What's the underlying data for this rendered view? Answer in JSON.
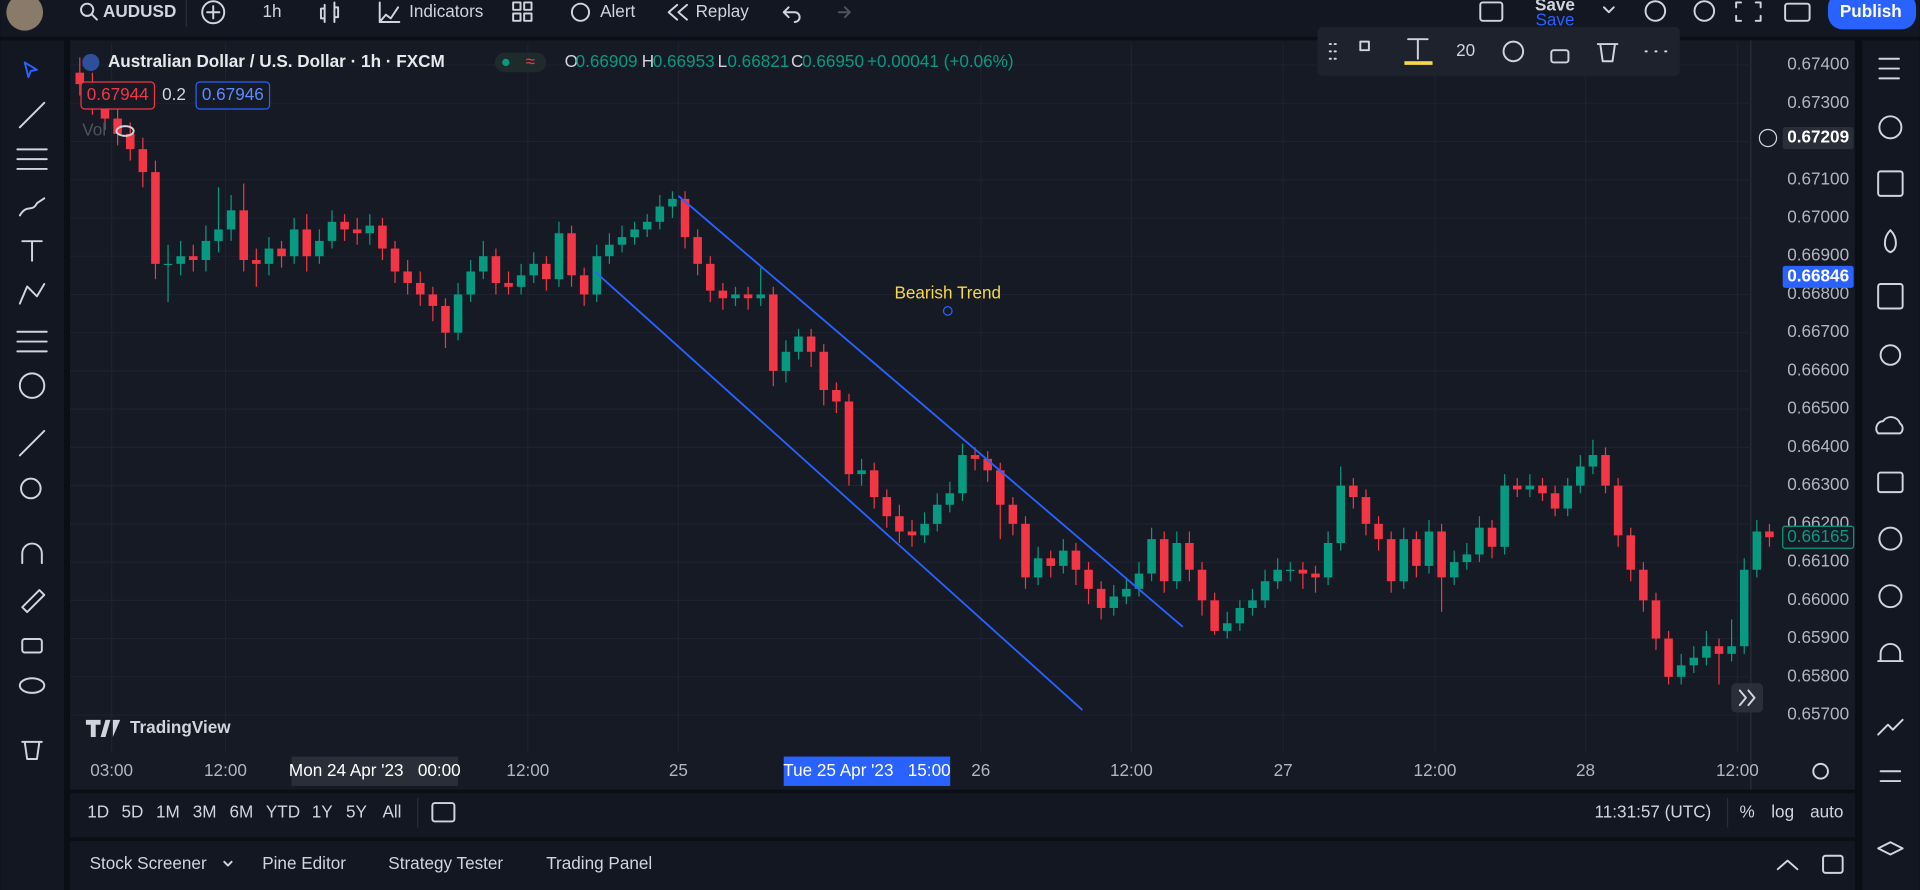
{
  "top_bar": {
    "symbol": "AUDUSD",
    "interval": "1h",
    "indicators": "Indicators",
    "alert": "Alert",
    "replay": "Replay",
    "save": "Save",
    "save_sub": "Save",
    "publish": "Publish"
  },
  "legend": {
    "title": "Australian Dollar / U.S. Dollar · 1h · FXCM",
    "o_label": "O",
    "o": "0.66909",
    "h_label": "H",
    "h": "0.66953",
    "l_label": "L",
    "l": "0.66821",
    "c_label": "C",
    "c": "0.66950",
    "change": "+0.00041 (+0.06%)",
    "sell": "0.67944",
    "spread": "0.2",
    "buy": "0.67946",
    "vol": "Vol"
  },
  "drawing_toolbar": {
    "font_size": "20"
  },
  "chart_data": {
    "type": "candlestick",
    "up_color": "#089981",
    "down_color": "#f23645",
    "grid": true,
    "ylim": [
      0.65601,
      0.67458
    ],
    "yticks": [
      {
        "value": 0.674,
        "label": "0.67400"
      },
      {
        "value": 0.673,
        "label": "0.67300"
      },
      {
        "value": 0.672,
        "label": "0.67200"
      },
      {
        "value": 0.671,
        "label": "0.67100"
      },
      {
        "value": 0.67,
        "label": "0.67000"
      },
      {
        "value": 0.669,
        "label": "0.66900"
      },
      {
        "value": 0.668,
        "label": "0.66800"
      },
      {
        "value": 0.667,
        "label": "0.66700"
      },
      {
        "value": 0.666,
        "label": "0.66600"
      },
      {
        "value": 0.665,
        "label": "0.66500"
      },
      {
        "value": 0.664,
        "label": "0.66400"
      },
      {
        "value": 0.663,
        "label": "0.66300"
      },
      {
        "value": 0.662,
        "label": "0.66200"
      },
      {
        "value": 0.661,
        "label": "0.66100"
      },
      {
        "value": 0.66,
        "label": "0.66000"
      },
      {
        "value": 0.659,
        "label": "0.65900"
      },
      {
        "value": 0.658,
        "label": "0.65800"
      },
      {
        "value": 0.657,
        "label": "0.65700"
      }
    ],
    "price_labels": [
      {
        "value": 0.67209,
        "label": "0.67209"
      },
      {
        "value": 0.66846,
        "label": "0.66846"
      },
      {
        "value": 0.66165,
        "label": "0.66165"
      }
    ],
    "time_labels": [
      "03:00",
      "12:00",
      "Mon 24 Apr '23   00:00",
      "12:00",
      "25",
      "Tue 25 Apr '23   15:00",
      "26",
      "12:00",
      "27",
      "12:00",
      "28",
      "12:00"
    ],
    "annotation": "Bearish Trend",
    "watermark": "TradingView",
    "candles": [
      [
        0.6738,
        0.6742,
        0.6732,
        0.6735
      ],
      [
        0.6735,
        0.6738,
        0.6727,
        0.673
      ],
      [
        0.673,
        0.6733,
        0.6723,
        0.6726
      ],
      [
        0.6726,
        0.6729,
        0.6719,
        0.6722
      ],
      [
        0.6722,
        0.6725,
        0.6715,
        0.6718
      ],
      [
        0.6718,
        0.6721,
        0.6708,
        0.6712
      ],
      [
        0.6712,
        0.6715,
        0.6684,
        0.6688
      ],
      [
        0.6688,
        0.6693,
        0.6678,
        0.6688
      ],
      [
        0.6688,
        0.6694,
        0.6685,
        0.669
      ],
      [
        0.669,
        0.6693,
        0.6686,
        0.6689
      ],
      [
        0.6689,
        0.6698,
        0.6686,
        0.6694
      ],
      [
        0.6694,
        0.6708,
        0.6691,
        0.6697
      ],
      [
        0.6697,
        0.6706,
        0.6694,
        0.6702
      ],
      [
        0.6702,
        0.6709,
        0.6686,
        0.6689
      ],
      [
        0.6689,
        0.6692,
        0.6682,
        0.6688
      ],
      [
        0.6688,
        0.6695,
        0.6685,
        0.6692
      ],
      [
        0.6692,
        0.6694,
        0.6687,
        0.669
      ],
      [
        0.669,
        0.67,
        0.6688,
        0.6697
      ],
      [
        0.6697,
        0.6701,
        0.6686,
        0.669
      ],
      [
        0.669,
        0.6697,
        0.6688,
        0.6694
      ],
      [
        0.6694,
        0.6702,
        0.6692,
        0.6699
      ],
      [
        0.6699,
        0.6701,
        0.6694,
        0.6697
      ],
      [
        0.6697,
        0.67,
        0.6693,
        0.6696
      ],
      [
        0.6696,
        0.6701,
        0.6693,
        0.6698
      ],
      [
        0.6698,
        0.67,
        0.6689,
        0.6692
      ],
      [
        0.6692,
        0.6694,
        0.6683,
        0.6686
      ],
      [
        0.6686,
        0.6689,
        0.668,
        0.6683
      ],
      [
        0.6683,
        0.6686,
        0.6677,
        0.668
      ],
      [
        0.668,
        0.6682,
        0.6673,
        0.6677
      ],
      [
        0.6677,
        0.6679,
        0.6666,
        0.667
      ],
      [
        0.667,
        0.6683,
        0.6668,
        0.668
      ],
      [
        0.668,
        0.6689,
        0.6678,
        0.6686
      ],
      [
        0.6686,
        0.6694,
        0.6684,
        0.669
      ],
      [
        0.669,
        0.6692,
        0.668,
        0.6683
      ],
      [
        0.6683,
        0.6686,
        0.668,
        0.6682
      ],
      [
        0.6682,
        0.6688,
        0.668,
        0.6685
      ],
      [
        0.6685,
        0.6691,
        0.6683,
        0.6688
      ],
      [
        0.6688,
        0.669,
        0.6681,
        0.6684
      ],
      [
        0.6684,
        0.6699,
        0.6682,
        0.6696
      ],
      [
        0.6696,
        0.6698,
        0.6682,
        0.6685
      ],
      [
        0.6685,
        0.6687,
        0.6677,
        0.668
      ],
      [
        0.668,
        0.6693,
        0.6678,
        0.669
      ],
      [
        0.669,
        0.6696,
        0.6688,
        0.6693
      ],
      [
        0.6693,
        0.6698,
        0.6691,
        0.6695
      ],
      [
        0.6695,
        0.6699,
        0.6693,
        0.6697
      ],
      [
        0.6697,
        0.6701,
        0.6695,
        0.6699
      ],
      [
        0.6699,
        0.6706,
        0.6697,
        0.6703
      ],
      [
        0.6703,
        0.6707,
        0.67,
        0.6705
      ],
      [
        0.6705,
        0.6707,
        0.6692,
        0.6695
      ],
      [
        0.6695,
        0.6697,
        0.6685,
        0.6688
      ],
      [
        0.6688,
        0.669,
        0.6678,
        0.6681
      ],
      [
        0.6681,
        0.6683,
        0.6676,
        0.6679
      ],
      [
        0.6679,
        0.6682,
        0.6677,
        0.668
      ],
      [
        0.668,
        0.6682,
        0.6676,
        0.6679
      ],
      [
        0.6679,
        0.6687,
        0.6677,
        0.668
      ],
      [
        0.668,
        0.6682,
        0.6656,
        0.666
      ],
      [
        0.666,
        0.6668,
        0.6657,
        0.6665
      ],
      [
        0.6665,
        0.6671,
        0.6663,
        0.6669
      ],
      [
        0.6669,
        0.6671,
        0.6661,
        0.6665
      ],
      [
        0.6665,
        0.6667,
        0.6651,
        0.6655
      ],
      [
        0.6655,
        0.6657,
        0.6649,
        0.6652
      ],
      [
        0.6652,
        0.6654,
        0.663,
        0.6633
      ],
      [
        0.6633,
        0.6637,
        0.663,
        0.6634
      ],
      [
        0.6634,
        0.6636,
        0.6624,
        0.6627
      ],
      [
        0.6627,
        0.6629,
        0.6619,
        0.6622
      ],
      [
        0.6622,
        0.6625,
        0.6615,
        0.6618
      ],
      [
        0.6618,
        0.6621,
        0.6614,
        0.6617
      ],
      [
        0.6617,
        0.6623,
        0.6615,
        0.662
      ],
      [
        0.662,
        0.6628,
        0.6618,
        0.6625
      ],
      [
        0.6625,
        0.6631,
        0.6623,
        0.6628
      ],
      [
        0.6628,
        0.6641,
        0.6626,
        0.6638
      ],
      [
        0.6638,
        0.664,
        0.6634,
        0.6637
      ],
      [
        0.6637,
        0.6639,
        0.6631,
        0.6634
      ],
      [
        0.6634,
        0.6636,
        0.6616,
        0.6625
      ],
      [
        0.6625,
        0.6627,
        0.6617,
        0.662
      ],
      [
        0.662,
        0.6622,
        0.6603,
        0.6606
      ],
      [
        0.6606,
        0.6614,
        0.6604,
        0.6611
      ],
      [
        0.6611,
        0.6613,
        0.6606,
        0.6609
      ],
      [
        0.6609,
        0.6616,
        0.6607,
        0.6613
      ],
      [
        0.6613,
        0.6615,
        0.6604,
        0.6608
      ],
      [
        0.6608,
        0.661,
        0.6599,
        0.6603
      ],
      [
        0.6603,
        0.6605,
        0.6595,
        0.6598
      ],
      [
        0.6598,
        0.6604,
        0.6596,
        0.6601
      ],
      [
        0.6601,
        0.6606,
        0.6599,
        0.6603
      ],
      [
        0.6603,
        0.661,
        0.6601,
        0.6607
      ],
      [
        0.6607,
        0.6619,
        0.6605,
        0.6616
      ],
      [
        0.6616,
        0.6618,
        0.6602,
        0.6605
      ],
      [
        0.6605,
        0.6618,
        0.6603,
        0.6615
      ],
      [
        0.6615,
        0.6618,
        0.6605,
        0.6608
      ],
      [
        0.6608,
        0.661,
        0.6596,
        0.66
      ],
      [
        0.66,
        0.6602,
        0.6591,
        0.6592
      ],
      [
        0.6592,
        0.6597,
        0.659,
        0.6594
      ],
      [
        0.6594,
        0.66,
        0.6592,
        0.6598
      ],
      [
        0.6598,
        0.6603,
        0.6596,
        0.66
      ],
      [
        0.66,
        0.6608,
        0.6598,
        0.6605
      ],
      [
        0.6605,
        0.6611,
        0.6603,
        0.6608
      ],
      [
        0.6608,
        0.661,
        0.6605,
        0.6608
      ],
      [
        0.6608,
        0.661,
        0.6603,
        0.6607
      ],
      [
        0.6607,
        0.6609,
        0.6602,
        0.6606
      ],
      [
        0.6606,
        0.6618,
        0.6604,
        0.6615
      ],
      [
        0.6615,
        0.6635,
        0.6613,
        0.663
      ],
      [
        0.663,
        0.6632,
        0.6624,
        0.6627
      ],
      [
        0.6627,
        0.6629,
        0.6617,
        0.662
      ],
      [
        0.662,
        0.6622,
        0.6613,
        0.6616
      ],
      [
        0.6616,
        0.6618,
        0.6602,
        0.6605
      ],
      [
        0.6605,
        0.6619,
        0.6603,
        0.6616
      ],
      [
        0.6616,
        0.6618,
        0.6606,
        0.6609
      ],
      [
        0.6609,
        0.6621,
        0.6607,
        0.6618
      ],
      [
        0.6618,
        0.662,
        0.6597,
        0.6606
      ],
      [
        0.6606,
        0.6613,
        0.6604,
        0.661
      ],
      [
        0.661,
        0.6615,
        0.6608,
        0.6612
      ],
      [
        0.6612,
        0.6622,
        0.661,
        0.6619
      ],
      [
        0.6619,
        0.6621,
        0.6611,
        0.6614
      ],
      [
        0.6614,
        0.6633,
        0.6612,
        0.663
      ],
      [
        0.663,
        0.6632,
        0.6627,
        0.6629
      ],
      [
        0.6629,
        0.6633,
        0.6627,
        0.663
      ],
      [
        0.663,
        0.6632,
        0.6626,
        0.6628
      ],
      [
        0.6628,
        0.663,
        0.6622,
        0.6624
      ],
      [
        0.6624,
        0.6632,
        0.6622,
        0.663
      ],
      [
        0.663,
        0.6638,
        0.6628,
        0.6635
      ],
      [
        0.6635,
        0.6642,
        0.6633,
        0.6638
      ],
      [
        0.6638,
        0.664,
        0.6628,
        0.663
      ],
      [
        0.663,
        0.6632,
        0.6614,
        0.6617
      ],
      [
        0.6617,
        0.6619,
        0.6605,
        0.6608
      ],
      [
        0.6608,
        0.661,
        0.6597,
        0.66
      ],
      [
        0.66,
        0.6602,
        0.6587,
        0.659
      ],
      [
        0.659,
        0.6592,
        0.6578,
        0.658
      ],
      [
        0.658,
        0.6586,
        0.6578,
        0.6583
      ],
      [
        0.6583,
        0.6588,
        0.6581,
        0.6585
      ],
      [
        0.6585,
        0.6592,
        0.6583,
        0.6588
      ],
      [
        0.6588,
        0.659,
        0.6578,
        0.6586
      ],
      [
        0.6586,
        0.6595,
        0.6584,
        0.6588
      ],
      [
        0.6588,
        0.6611,
        0.6586,
        0.6608
      ],
      [
        0.6608,
        0.6621,
        0.6606,
        0.6618
      ],
      [
        0.6618,
        0.662,
        0.6614,
        0.66165
      ]
    ]
  },
  "range_bar": {
    "ranges": [
      "1D",
      "5D",
      "1M",
      "3M",
      "6M",
      "YTD",
      "1Y",
      "5Y",
      "All"
    ],
    "clock": "11:31:57 (UTC)",
    "percent": "%",
    "log": "log",
    "auto": "auto"
  },
  "bottom_tabs": [
    "Stock Screener",
    "Pine Editor",
    "Strategy Tester",
    "Trading Panel"
  ]
}
